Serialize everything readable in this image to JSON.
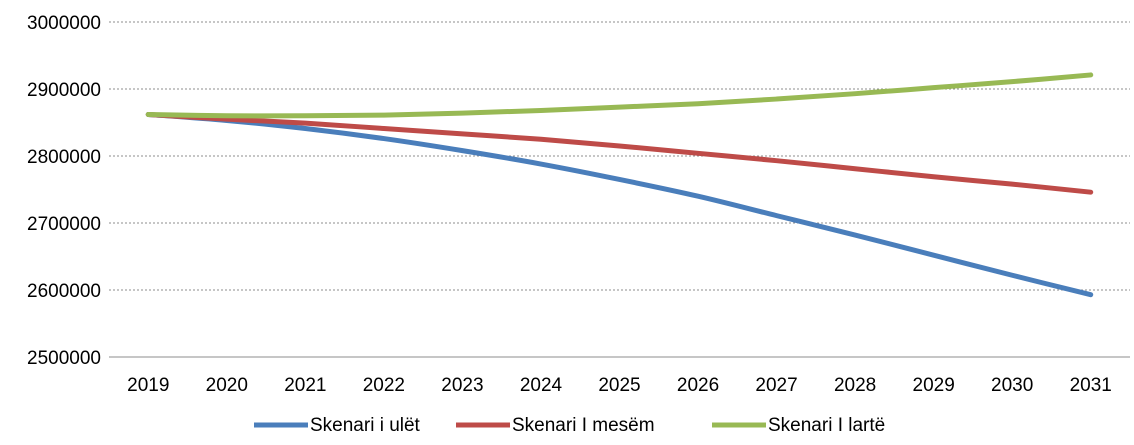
{
  "chart_data": {
    "type": "line",
    "title": "",
    "xlabel": "",
    "ylabel": "",
    "x": [
      "2019",
      "2020",
      "2021",
      "2022",
      "2023",
      "2024",
      "2025",
      "2026",
      "2027",
      "2028",
      "2029",
      "2030",
      "2031"
    ],
    "ylim": [
      2500000,
      3000000
    ],
    "yticks": [
      "2500000",
      "2600000",
      "2700000",
      "2800000",
      "2900000",
      "3000000"
    ],
    "grid": true,
    "legend_position": "bottom",
    "series": [
      {
        "name": "Skenari i ulët",
        "color": "#4a7ebb",
        "values": [
          2862000,
          2853000,
          2841000,
          2826000,
          2808000,
          2788000,
          2765000,
          2740000,
          2711000,
          2682000,
          2652000,
          2622000,
          2593000
        ]
      },
      {
        "name": "Skenari I mesëm",
        "color": "#be4b48",
        "values": [
          2862000,
          2855000,
          2849000,
          2841000,
          2833000,
          2825000,
          2815000,
          2804000,
          2793000,
          2781000,
          2769000,
          2758000,
          2746000
        ]
      },
      {
        "name": "Skenari I lartë",
        "color": "#98b954",
        "values": [
          2862000,
          2860000,
          2860000,
          2861000,
          2864000,
          2868000,
          2873000,
          2878000,
          2885000,
          2893000,
          2902000,
          2911000,
          2921000
        ]
      }
    ]
  }
}
